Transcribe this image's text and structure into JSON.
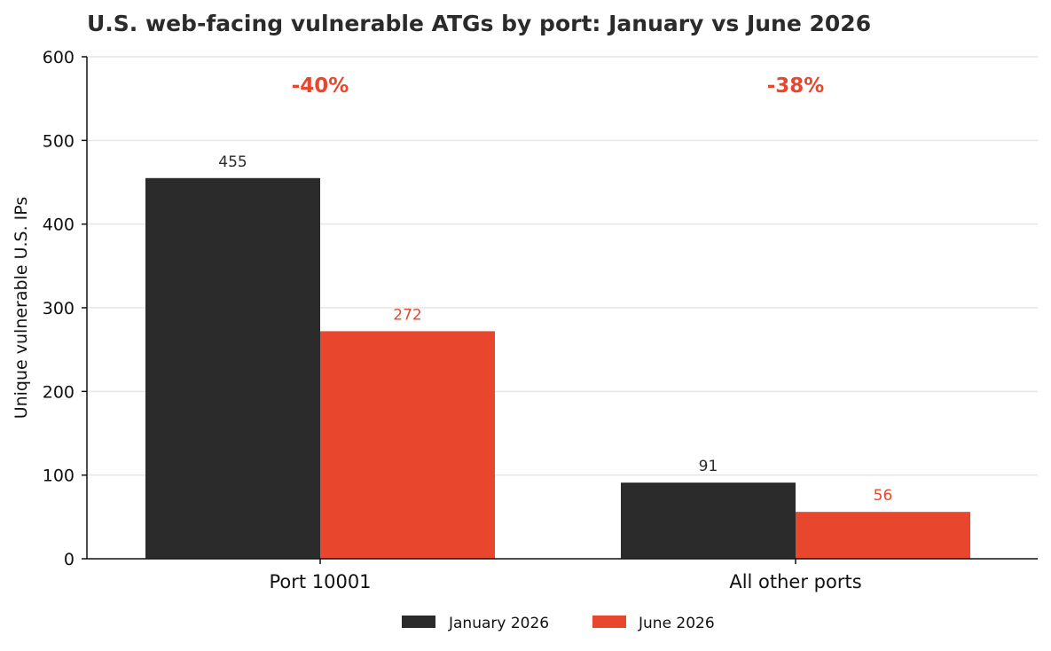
{
  "chart_data": {
    "type": "bar",
    "title": "U.S. web-facing vulnerable ATGs by port: January vs June 2026",
    "xlabel": "",
    "ylabel": "Unique vulnerable U.S. IPs",
    "ylim": [
      0,
      600
    ],
    "yticks": [
      0,
      100,
      200,
      300,
      400,
      500,
      600
    ],
    "grid": true,
    "legend_position": "bottom-center",
    "categories": [
      "Port 10001",
      "All other ports"
    ],
    "series": [
      {
        "name": "January 2026",
        "values": [
          455,
          91
        ],
        "color": "#2b2b2b",
        "label_color": "#2b2b2b"
      },
      {
        "name": "June 2026",
        "values": [
          272,
          56
        ],
        "color": "#e8472d",
        "label_color": "#e8472d"
      }
    ],
    "annotations": [
      "-40%",
      "-38%"
    ],
    "annotation_color": "#e8472d"
  }
}
